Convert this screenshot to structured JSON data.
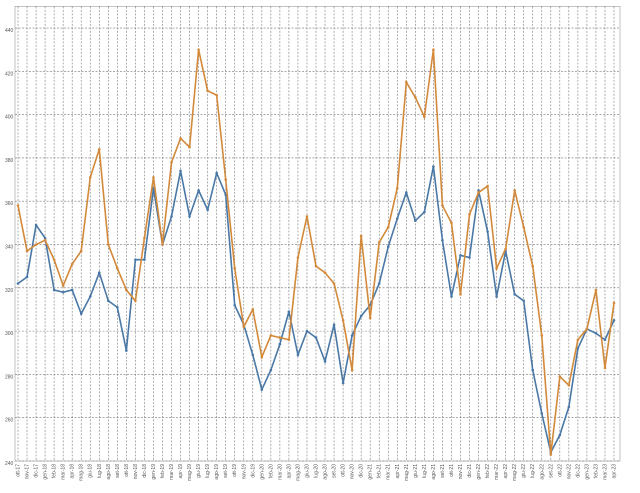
{
  "chart_data": {
    "type": "line",
    "categories": [
      "ott-17",
      "nov-17",
      "dic-17",
      "gen-18",
      "feb-18",
      "mar-18",
      "apr-18",
      "mag-18",
      "giu-18",
      "lug-18",
      "ago-18",
      "set-18",
      "ott-18",
      "nov-18",
      "dic-18",
      "gen-19",
      "feb-19",
      "mar-19",
      "apr-19",
      "mag-19",
      "giu-19",
      "lug-19",
      "ago-19",
      "set-19",
      "ott-19",
      "nov-19",
      "dic-19",
      "gen-20",
      "feb-20",
      "mar-20",
      "apr-20",
      "mag-20",
      "giu-20",
      "lug-20",
      "ago-20",
      "set-20",
      "ott-20",
      "nov-20",
      "dic-20",
      "gen-21",
      "feb-21",
      "mar-21",
      "apr-21",
      "mag-21",
      "giu-21",
      "lug-21",
      "ago-21",
      "set-21",
      "ott-21",
      "nov-21",
      "dic-21",
      "gen-22",
      "feb-22",
      "mar-22",
      "apr-22",
      "mag-22",
      "giu-22",
      "lug-22",
      "ago-22",
      "set-22",
      "ott-22",
      "nov-22",
      "dic-22",
      "gen-23",
      "feb-23",
      "mar-23",
      "apr-23"
    ],
    "series": [
      {
        "color": "#4a78a6",
        "values": [
          322,
          325,
          349,
          343,
          319,
          318,
          319,
          308,
          316,
          327,
          314,
          311,
          291,
          333,
          333,
          366,
          340,
          353,
          374,
          353,
          365,
          356,
          373,
          363,
          312,
          303,
          289,
          273,
          282,
          294,
          309,
          289,
          300,
          297,
          286,
          303,
          276,
          298,
          307,
          312,
          322,
          339,
          352,
          364,
          351,
          355,
          376,
          342,
          316,
          335,
          334,
          365,
          346,
          316,
          337,
          317,
          314,
          282,
          262,
          244,
          252,
          265,
          292,
          301,
          299,
          296,
          305
        ]
      },
      {
        "color": "#d2893a",
        "values": [
          358,
          337,
          340,
          342,
          333,
          321,
          331,
          337,
          371,
          384,
          340,
          329,
          319,
          314,
          343,
          371,
          340,
          378,
          389,
          385,
          430,
          411,
          409,
          370,
          329,
          302,
          310,
          288,
          298,
          297,
          296,
          334,
          353,
          330,
          327,
          322,
          305,
          282,
          344,
          306,
          341,
          348,
          366,
          415,
          408,
          399,
          430,
          358,
          350,
          317,
          354,
          364,
          367,
          329,
          338,
          365,
          348,
          330,
          298,
          243,
          279,
          275,
          296,
          301,
          319,
          283,
          313
        ]
      }
    ],
    "ylim": [
      240,
      450
    ],
    "yticks": [
      240,
      260,
      280,
      300,
      320,
      340,
      360,
      380,
      400,
      420,
      440
    ],
    "grid": true
  }
}
